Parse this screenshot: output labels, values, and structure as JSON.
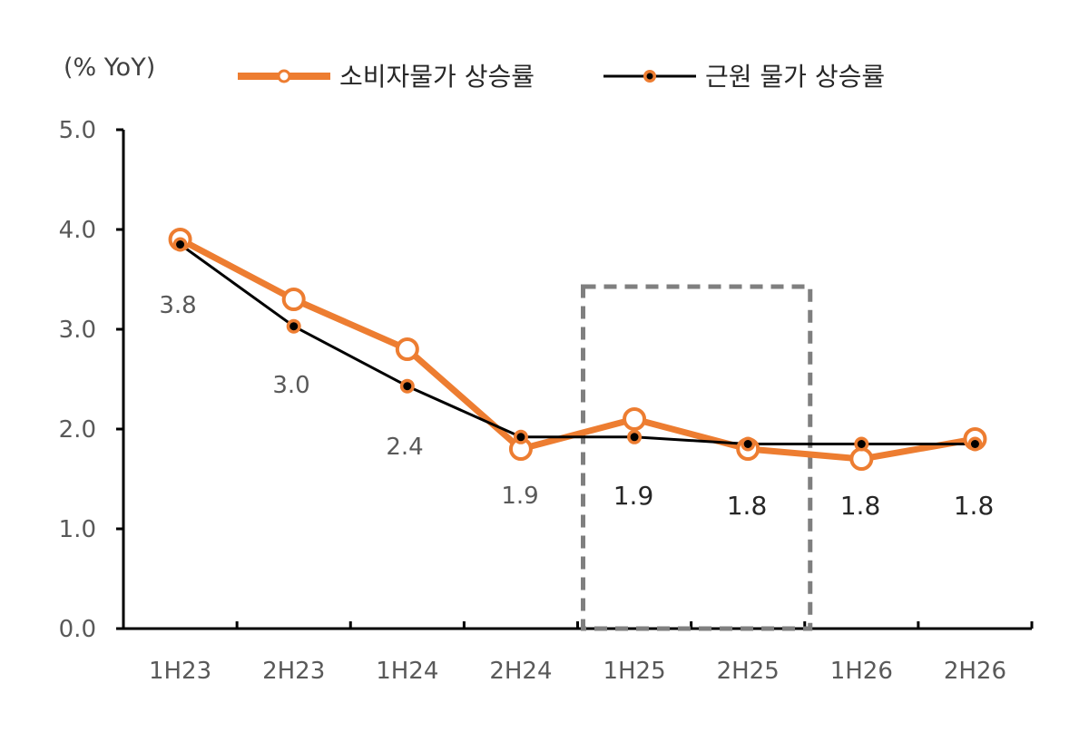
{
  "chart_data": {
    "type": "line",
    "unit_label": "(% YoY)",
    "categories": [
      "1H23",
      "2H23",
      "1H24",
      "2H24",
      "1H25",
      "2H25",
      "1H26",
      "2H26"
    ],
    "ylim": [
      0,
      5
    ],
    "yticks": [
      "0.0",
      "1.0",
      "2.0",
      "3.0",
      "4.0",
      "5.0"
    ],
    "grid": false,
    "legend_position": "top",
    "series": [
      {
        "name": "소비자물가 상승률",
        "color": "#ED7D31",
        "marker": "hollow-circle",
        "values": [
          3.9,
          3.3,
          2.8,
          1.8,
          2.1,
          1.8,
          1.7,
          1.9
        ]
      },
      {
        "name": "근원 물가 상승률",
        "color": "#000000",
        "marker": "orange-circle-black-dot",
        "values": [
          3.85,
          3.03,
          2.43,
          1.92,
          1.92,
          1.85,
          1.85,
          1.85
        ]
      }
    ],
    "data_labels": [
      "3.8",
      "3.0",
      "2.4",
      "1.9",
      "1.9",
      "1.8",
      "1.8",
      "1.8"
    ],
    "highlight_range": [
      "1H25",
      "2H25"
    ]
  }
}
